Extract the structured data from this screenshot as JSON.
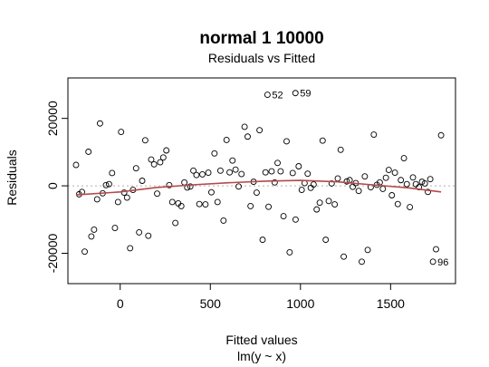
{
  "chart_data": {
    "type": "scatter",
    "title": "normal 1 10000",
    "subtitle": "Residuals vs Fitted",
    "xlabel": "Fitted values",
    "xlabel2": "lm(y ~ x)",
    "ylabel": "Residuals",
    "xlim": [
      -290,
      1860
    ],
    "ylim": [
      -29000,
      32000
    ],
    "x_ticks": [
      0,
      500,
      1000,
      1500
    ],
    "y_ticks": [
      -20000,
      0,
      20000
    ],
    "x_tick_labels": [
      "0",
      "500",
      "1000",
      "1500"
    ],
    "y_tick_labels": [
      "-20000",
      "0",
      "20000"
    ],
    "reference_line": 0,
    "grid": false,
    "legend": "none",
    "colors": {
      "points": "#000000",
      "smooth": "#b5494b",
      "reference": "#b0b0b0"
    },
    "annotations": [
      {
        "label": "52",
        "x": 817,
        "y": 27000
      },
      {
        "label": "59",
        "x": 972,
        "y": 27500
      },
      {
        "label": "96",
        "x": 1735,
        "y": -22500
      }
    ],
    "points": [
      [
        -245,
        6200
      ],
      [
        -228,
        -2500
      ],
      [
        -212,
        -1800
      ],
      [
        -197,
        -19500
      ],
      [
        -176,
        10100
      ],
      [
        -160,
        -15000
      ],
      [
        -145,
        -13000
      ],
      [
        -128,
        -4000
      ],
      [
        -112,
        18500
      ],
      [
        -97,
        -2200
      ],
      [
        -79,
        200
      ],
      [
        -62,
        500
      ],
      [
        -45,
        3800
      ],
      [
        -29,
        -12500
      ],
      [
        -12,
        -4800
      ],
      [
        5,
        16000
      ],
      [
        22,
        -2000
      ],
      [
        38,
        -3500
      ],
      [
        55,
        -18500
      ],
      [
        71,
        -1200
      ],
      [
        88,
        5200
      ],
      [
        105,
        -13800
      ],
      [
        122,
        1500
      ],
      [
        139,
        13500
      ],
      [
        156,
        -14800
      ],
      [
        172,
        7800
      ],
      [
        188,
        6400
      ],
      [
        205,
        -2300
      ],
      [
        222,
        7000
      ],
      [
        239,
        8400
      ],
      [
        256,
        10500
      ],
      [
        272,
        200
      ],
      [
        289,
        -4800
      ],
      [
        306,
        -11000
      ],
      [
        322,
        -5200
      ],
      [
        339,
        -6000
      ],
      [
        356,
        1000
      ],
      [
        372,
        -500
      ],
      [
        389,
        -200
      ],
      [
        406,
        4500
      ],
      [
        423,
        3200
      ],
      [
        439,
        -5400
      ],
      [
        456,
        3400
      ],
      [
        473,
        -5500
      ],
      [
        489,
        3900
      ],
      [
        506,
        -1900
      ],
      [
        523,
        9600
      ],
      [
        540,
        -4800
      ],
      [
        556,
        4500
      ],
      [
        573,
        -10300
      ],
      [
        590,
        13600
      ],
      [
        607,
        4000
      ],
      [
        623,
        7500
      ],
      [
        640,
        4800
      ],
      [
        657,
        -200
      ],
      [
        673,
        3500
      ],
      [
        690,
        17500
      ],
      [
        707,
        14600
      ],
      [
        723,
        -6000
      ],
      [
        740,
        1200
      ],
      [
        757,
        -2000
      ],
      [
        773,
        16500
      ],
      [
        790,
        -16000
      ],
      [
        806,
        4000
      ],
      [
        817,
        27000
      ],
      [
        823,
        -6200
      ],
      [
        840,
        4300
      ],
      [
        857,
        1000
      ],
      [
        873,
        6800
      ],
      [
        890,
        4300
      ],
      [
        906,
        -9000
      ],
      [
        923,
        13200
      ],
      [
        940,
        -19700
      ],
      [
        957,
        3800
      ],
      [
        972,
        27500
      ],
      [
        973,
        -10000
      ],
      [
        990,
        5800
      ],
      [
        1007,
        -1200
      ],
      [
        1023,
        800
      ],
      [
        1040,
        3600
      ],
      [
        1057,
        -600
      ],
      [
        1073,
        400
      ],
      [
        1090,
        -7000
      ],
      [
        1107,
        -5000
      ],
      [
        1123,
        13400
      ],
      [
        1140,
        -16000
      ],
      [
        1157,
        -4500
      ],
      [
        1173,
        700
      ],
      [
        1190,
        -5500
      ],
      [
        1207,
        2200
      ],
      [
        1223,
        10700
      ],
      [
        1240,
        -21000
      ],
      [
        1257,
        1300
      ],
      [
        1273,
        1700
      ],
      [
        1290,
        -300
      ],
      [
        1307,
        800
      ],
      [
        1323,
        -1500
      ],
      [
        1340,
        -22500
      ],
      [
        1357,
        2800
      ],
      [
        1373,
        -19000
      ],
      [
        1390,
        -400
      ],
      [
        1407,
        15200
      ],
      [
        1424,
        300
      ],
      [
        1440,
        1000
      ],
      [
        1457,
        -900
      ],
      [
        1474,
        2400
      ],
      [
        1490,
        4700
      ],
      [
        1507,
        -2800
      ],
      [
        1524,
        3900
      ],
      [
        1540,
        -5400
      ],
      [
        1557,
        1700
      ],
      [
        1574,
        8200
      ],
      [
        1590,
        500
      ],
      [
        1607,
        -6300
      ],
      [
        1624,
        2500
      ],
      [
        1640,
        500
      ],
      [
        1657,
        -400
      ],
      [
        1674,
        1200
      ],
      [
        1690,
        700
      ],
      [
        1707,
        -1800
      ],
      [
        1735,
        -22500
      ],
      [
        1720,
        2000
      ],
      [
        1752,
        -18800
      ],
      [
        1780,
        15000
      ]
    ],
    "smooth_line": [
      [
        -245,
        -2700
      ],
      [
        0,
        -1800
      ],
      [
        200,
        -500
      ],
      [
        400,
        300
      ],
      [
        600,
        900
      ],
      [
        800,
        1400
      ],
      [
        1000,
        1600
      ],
      [
        1200,
        1200
      ],
      [
        1400,
        300
      ],
      [
        1600,
        -600
      ],
      [
        1780,
        -1800
      ]
    ]
  }
}
